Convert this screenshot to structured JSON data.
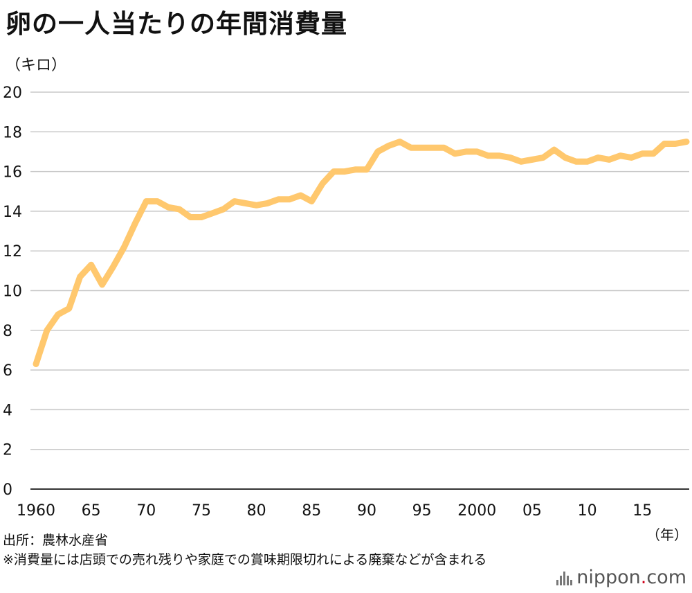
{
  "title": "卵の一人当たりの年間消費量",
  "y_unit": "（キロ）",
  "x_unit": "（年）",
  "source": "出所：農林水産省",
  "note": "※消費量には店頭での売れ残りや家庭での賞味期限切れによる廃棄などが含まれる",
  "logo": {
    "name": "nippon",
    "dot": ".",
    "suffix": "com",
    "icon": "bars-icon"
  },
  "colors": {
    "line": "#ffc86e",
    "grid": "#c8c8c8",
    "axis": "#333333"
  },
  "chart_data": {
    "type": "line",
    "title": "卵の一人当たりの年間消費量",
    "ylabel": "（キロ）",
    "xlabel": "（年）",
    "ylim": [
      0,
      20
    ],
    "xlim": [
      1960,
      2019
    ],
    "yticks": [
      0,
      2,
      4,
      6,
      8,
      10,
      12,
      14,
      16,
      18,
      20
    ],
    "xticks": [
      {
        "value": 1960,
        "label": "1960"
      },
      {
        "value": 1965,
        "label": "65"
      },
      {
        "value": 1970,
        "label": "70"
      },
      {
        "value": 1975,
        "label": "75"
      },
      {
        "value": 1980,
        "label": "80"
      },
      {
        "value": 1985,
        "label": "85"
      },
      {
        "value": 1990,
        "label": "90"
      },
      {
        "value": 1995,
        "label": "95"
      },
      {
        "value": 2000,
        "label": "2000"
      },
      {
        "value": 2005,
        "label": "05"
      },
      {
        "value": 2010,
        "label": "10"
      },
      {
        "value": 2015,
        "label": "15"
      }
    ],
    "grid": true,
    "x": [
      1960,
      1961,
      1962,
      1963,
      1964,
      1965,
      1966,
      1967,
      1968,
      1969,
      1970,
      1971,
      1972,
      1973,
      1974,
      1975,
      1976,
      1977,
      1978,
      1979,
      1980,
      1981,
      1982,
      1983,
      1984,
      1985,
      1986,
      1987,
      1988,
      1989,
      1990,
      1991,
      1992,
      1993,
      1994,
      1995,
      1996,
      1997,
      1998,
      1999,
      2000,
      2001,
      2002,
      2003,
      2004,
      2005,
      2006,
      2007,
      2008,
      2009,
      2010,
      2011,
      2012,
      2013,
      2014,
      2015,
      2016,
      2017,
      2018,
      2019
    ],
    "series": [
      {
        "values": [
          6.3,
          8.0,
          8.8,
          9.1,
          10.7,
          11.3,
          10.3,
          11.2,
          12.2,
          13.4,
          14.5,
          14.5,
          14.2,
          14.1,
          13.7,
          13.7,
          13.9,
          14.1,
          14.5,
          14.4,
          14.3,
          14.4,
          14.6,
          14.6,
          14.8,
          14.5,
          15.4,
          16.0,
          16.0,
          16.1,
          16.1,
          17.0,
          17.3,
          17.5,
          17.2,
          17.2,
          17.2,
          17.2,
          16.9,
          17.0,
          17.0,
          16.8,
          16.8,
          16.7,
          16.5,
          16.6,
          16.7,
          17.1,
          16.7,
          16.5,
          16.5,
          16.7,
          16.6,
          16.8,
          16.7,
          16.9,
          16.9,
          17.4,
          17.4,
          17.5
        ]
      }
    ]
  }
}
